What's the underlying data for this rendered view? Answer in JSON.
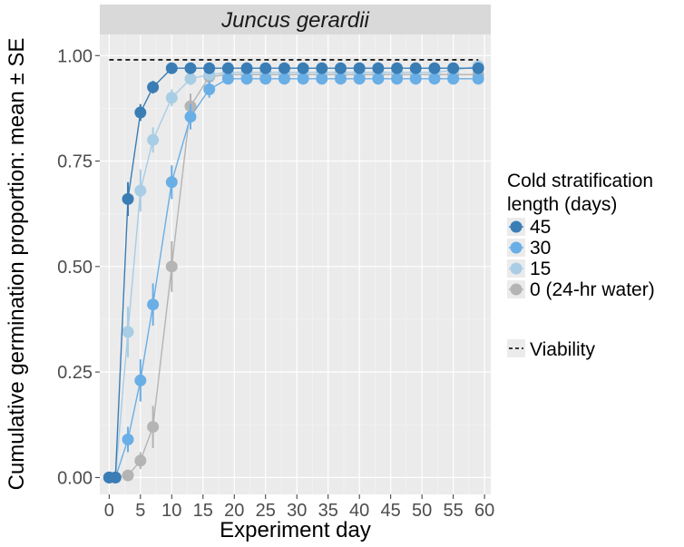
{
  "chart_data": {
    "type": "line",
    "title": "Juncus gerardii",
    "xlabel": "Experiment day",
    "ylabel": "Cumulative germination proportion: mean ± SE",
    "xlim": [
      -1.5,
      61
    ],
    "ylim": [
      -0.04,
      1.05
    ],
    "x_ticks": [
      0,
      5,
      10,
      15,
      20,
      25,
      30,
      35,
      40,
      45,
      50,
      55,
      60
    ],
    "x_tick_labels": [
      "0",
      "5",
      "10",
      "15",
      "20",
      "25",
      "30",
      "35",
      "40",
      "45",
      "50",
      "55",
      "60"
    ],
    "y_ticks": [
      0,
      0.25,
      0.5,
      0.75,
      1.0
    ],
    "y_tick_labels": [
      "0.00",
      "0.25",
      "0.50",
      "0.75",
      "1.00"
    ],
    "legend_title": [
      "Cold stratification",
      "length (days)"
    ],
    "viability": {
      "label": "Viability",
      "value": 0.99,
      "x_start": 0,
      "x_end": 59
    },
    "series": [
      {
        "name": "45",
        "color": "#3a7db5",
        "x": [
          0,
          1,
          3,
          5,
          7,
          10,
          13,
          16,
          19,
          22,
          25,
          28,
          31,
          34,
          37,
          40,
          43,
          46,
          49,
          52,
          55,
          59
        ],
        "y": [
          0,
          0,
          0.66,
          0.865,
          0.925,
          0.97,
          0.97,
          0.97,
          0.97,
          0.97,
          0.97,
          0.97,
          0.97,
          0.97,
          0.97,
          0.97,
          0.97,
          0.97,
          0.97,
          0.97,
          0.97,
          0.97
        ],
        "se": [
          0,
          0,
          0.04,
          0.02,
          0.015,
          0.01,
          0.01,
          0.01,
          0.01,
          0.01,
          0.01,
          0.01,
          0.01,
          0.01,
          0.01,
          0.01,
          0.01,
          0.01,
          0.01,
          0.01,
          0.01,
          0.01
        ]
      },
      {
        "name": "30",
        "color": "#6aaee6",
        "x": [
          0,
          1,
          3,
          5,
          7,
          10,
          13,
          16,
          19,
          22,
          25,
          28,
          31,
          34,
          37,
          40,
          43,
          46,
          49,
          52,
          55,
          59
        ],
        "y": [
          0,
          0,
          0.09,
          0.23,
          0.41,
          0.7,
          0.855,
          0.92,
          0.945,
          0.945,
          0.945,
          0.945,
          0.945,
          0.945,
          0.945,
          0.945,
          0.945,
          0.945,
          0.945,
          0.945,
          0.945,
          0.945
        ],
        "se": [
          0,
          0,
          0.03,
          0.05,
          0.05,
          0.04,
          0.03,
          0.02,
          0.01,
          0.01,
          0.01,
          0.01,
          0.01,
          0.01,
          0.01,
          0.01,
          0.01,
          0.01,
          0.01,
          0.01,
          0.01,
          0.01
        ]
      },
      {
        "name": "15",
        "color": "#a8cde5",
        "x": [
          0,
          1,
          3,
          5,
          7,
          10,
          13,
          16,
          19,
          22,
          25,
          28,
          31,
          34,
          37,
          40,
          43,
          46,
          49,
          52,
          55,
          59
        ],
        "y": [
          0,
          0,
          0.345,
          0.68,
          0.8,
          0.9,
          0.945,
          0.955,
          0.96,
          0.96,
          0.96,
          0.96,
          0.96,
          0.96,
          0.96,
          0.96,
          0.96,
          0.96,
          0.96,
          0.96,
          0.965,
          0.975
        ],
        "se": [
          0,
          0,
          0.06,
          0.05,
          0.03,
          0.02,
          0.015,
          0.01,
          0.01,
          0.01,
          0.01,
          0.01,
          0.01,
          0.01,
          0.01,
          0.01,
          0.01,
          0.01,
          0.01,
          0.01,
          0.01,
          0.01
        ]
      },
      {
        "name": "0 (24-hr water)",
        "color": "#b4b4b4",
        "x": [
          0,
          1,
          3,
          5,
          7,
          10,
          13,
          16,
          19,
          22,
          25,
          28,
          31,
          34,
          37,
          40,
          43,
          46,
          49,
          52,
          55,
          59
        ],
        "y": [
          0,
          0,
          0.005,
          0.04,
          0.12,
          0.5,
          0.88,
          0.95,
          0.955,
          0.955,
          0.955,
          0.955,
          0.955,
          0.955,
          0.955,
          0.955,
          0.955,
          0.955,
          0.955,
          0.955,
          0.955,
          0.955
        ],
        "se": [
          0,
          0,
          0.005,
          0.02,
          0.05,
          0.06,
          0.03,
          0.015,
          0.01,
          0.01,
          0.01,
          0.01,
          0.01,
          0.01,
          0.01,
          0.01,
          0.01,
          0.01,
          0.01,
          0.01,
          0.01,
          0.01
        ]
      }
    ]
  }
}
